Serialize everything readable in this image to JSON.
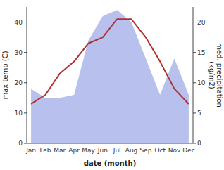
{
  "chart_data": {
    "type": "line",
    "categories": [
      "Jan",
      "Feb",
      "Mar",
      "Apr",
      "May",
      "Jun",
      "Jul",
      "Aug",
      "Sep",
      "Oct",
      "Nov",
      "Dec"
    ],
    "xlabel": "date (month)",
    "ylabel": "max temp (C)",
    "y2label": "med. precipitation\n(kg/m2)",
    "ylim": [
      0,
      45
    ],
    "yticks": [
      0,
      10,
      20,
      30,
      40
    ],
    "y2lim": [
      0,
      22.5
    ],
    "y2ticks": [
      0,
      5,
      10,
      15,
      20
    ],
    "grid": false,
    "series": [
      {
        "type": "area",
        "axis": "y2",
        "color": "#b8c0ee",
        "values": [
          9,
          7.5,
          7.5,
          8,
          17,
          21,
          22,
          20,
          14,
          8,
          14,
          8
        ]
      },
      {
        "type": "line",
        "color": "#b03030",
        "values": [
          13,
          16,
          23,
          27,
          33,
          35,
          41,
          41,
          35,
          27,
          18,
          13
        ]
      }
    ]
  }
}
